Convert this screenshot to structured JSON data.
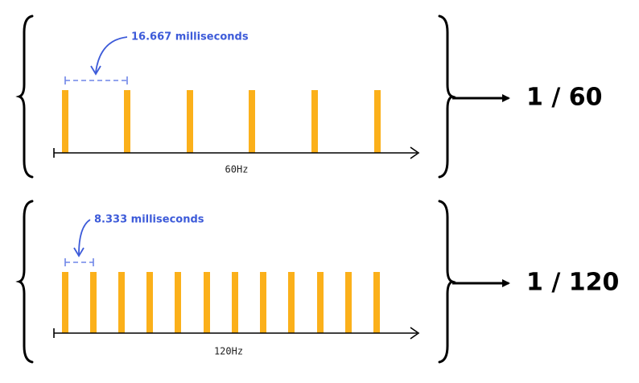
{
  "panels": [
    {
      "interval": "16.667 milliseconds",
      "axis_label": "60Hz",
      "result": "1 / 60"
    },
    {
      "interval": "8.333 milliseconds",
      "axis_label": "120Hz",
      "result": "1 / 120"
    }
  ]
}
